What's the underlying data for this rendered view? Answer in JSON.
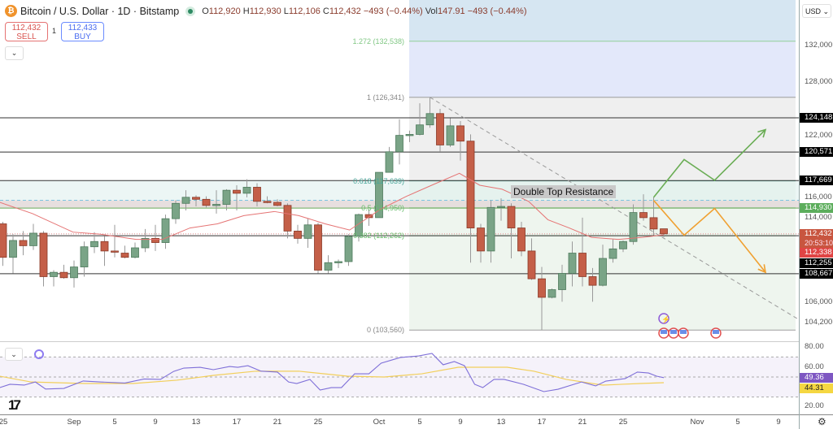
{
  "header": {
    "symbol_icon": "bitcoin-icon",
    "title": "Bitcoin / U.S. Dollar · 1D · Bitstamp",
    "status_icon": "market-open-dot",
    "ohlc": {
      "o_label": "O",
      "o": "112,920",
      "h_label": "H",
      "h": "112,930",
      "l_label": "L",
      "l": "112,106",
      "c_label": "C",
      "c": "112,432",
      "change": "−493 (−0.44%)",
      "vol_label": "Vol",
      "vol": "147.91",
      "vol_change": "−493 (−0.44%)"
    }
  },
  "trade": {
    "sell_price": "112,432",
    "sell_label": "SELL",
    "qty": "1",
    "buy_price": "112,433",
    "buy_label": "BUY"
  },
  "annotation": "Double Top Resistance",
  "axis": {
    "currency": "USD",
    "price_labels": [
      "132,000",
      "128,000",
      "122,000",
      "116,000",
      "114,000",
      "106,000",
      "104,200"
    ],
    "badges": {
      "level1": "124,148",
      "level2": "120,571",
      "level3": "117,669",
      "level4": "114,930",
      "last": "112,432",
      "countdown": "20:53:10",
      "ma": "112,338",
      "level5": "112,255",
      "level6": "108,667"
    },
    "rsi_labels": [
      "80.00",
      "60.00",
      "20.00"
    ],
    "rsi_value": "49.36",
    "rsi_ma_value": "44.31"
  },
  "dates": [
    "25",
    "Sep",
    "5",
    "9",
    "13",
    "17",
    "21",
    "25",
    "Oct",
    "5",
    "9",
    "13",
    "17",
    "21",
    "25",
    "Nov",
    "5",
    "9"
  ],
  "colors": {
    "up": "#7aa487",
    "down": "#c45f48",
    "ma": "#e57373",
    "rsi": "#7e6fd8",
    "rsi_ma": "#f2cf5b",
    "bull_path": "#6aad55",
    "bear_path": "#f0a030"
  },
  "chart_data": {
    "type": "candlestick",
    "scale": "log",
    "timeframe": "1D",
    "start_date": "Aug 25",
    "candles_ohlc": [
      [
        113400,
        113600,
        109400,
        110200
      ],
      [
        110200,
        112400,
        108700,
        111800
      ],
      [
        111800,
        112700,
        110400,
        111300
      ],
      [
        111300,
        113400,
        110900,
        112500
      ],
      [
        112500,
        112700,
        107500,
        108400
      ],
      [
        108400,
        109000,
        107500,
        108800
      ],
      [
        108800,
        109500,
        108200,
        108300
      ],
      [
        108300,
        109900,
        107400,
        109300
      ],
      [
        109300,
        111700,
        108400,
        111200
      ],
      [
        111200,
        112600,
        110600,
        111700
      ],
      [
        111700,
        112200,
        109400,
        110800
      ],
      [
        110800,
        113300,
        110200,
        110700
      ],
      [
        110600,
        111300,
        110100,
        110200
      ],
      [
        110200,
        111600,
        110100,
        111100
      ],
      [
        111100,
        112900,
        110700,
        112000
      ],
      [
        112000,
        113300,
        110800,
        111600
      ],
      [
        111600,
        114300,
        111000,
        113900
      ],
      [
        113900,
        115700,
        113400,
        115400
      ],
      [
        115400,
        116700,
        114700,
        116000
      ],
      [
        116000,
        116200,
        115100,
        115800
      ],
      [
        115800,
        116100,
        115000,
        115200
      ],
      [
        115200,
        116700,
        114400,
        115300
      ],
      [
        115300,
        116800,
        114700,
        116700
      ],
      [
        116700,
        117200,
        114700,
        116400
      ],
      [
        116400,
        117800,
        116000,
        117000
      ],
      [
        117000,
        117400,
        115100,
        115600
      ],
      [
        115600,
        116100,
        115400,
        115500
      ],
      [
        115500,
        115800,
        115100,
        115200
      ],
      [
        115200,
        115400,
        112000,
        112700
      ],
      [
        112700,
        113300,
        111500,
        112000
      ],
      [
        112000,
        113900,
        111100,
        113300
      ],
      [
        113300,
        113500,
        108700,
        109000
      ],
      [
        109000,
        110400,
        108700,
        109700
      ],
      [
        109700,
        110000,
        109200,
        109800
      ],
      [
        109800,
        112400,
        109400,
        112200
      ],
      [
        112200,
        114400,
        111700,
        114300
      ],
      [
        114300,
        114800,
        113200,
        114000
      ],
      [
        114000,
        118500,
        114000,
        118500
      ],
      [
        118500,
        121100,
        118500,
        120600
      ],
      [
        120600,
        124000,
        119300,
        122300
      ],
      [
        122300,
        122800,
        121600,
        122400
      ],
      [
        122400,
        125700,
        122300,
        123400
      ],
      [
        123400,
        126300,
        123100,
        124600
      ],
      [
        124600,
        125100,
        120600,
        121300
      ],
      [
        121300,
        124100,
        121100,
        123300
      ],
      [
        123300,
        123800,
        119700,
        121700
      ],
      [
        121700,
        122400,
        109700,
        113000
      ],
      [
        113000,
        113400,
        109700,
        110800
      ],
      [
        110800,
        115700,
        109700,
        115000
      ],
      [
        115000,
        115900,
        113700,
        115100
      ],
      [
        115100,
        115400,
        110100,
        113000
      ],
      [
        113000,
        113600,
        110300,
        110800
      ],
      [
        110800,
        112000,
        108100,
        108200
      ],
      [
        108200,
        109300,
        103560,
        106500
      ],
      [
        106500,
        107300,
        106400,
        107200
      ],
      [
        107200,
        109500,
        106100,
        108700
      ],
      [
        108700,
        111700,
        107500,
        110600
      ],
      [
        110600,
        114000,
        107500,
        108400
      ],
      [
        108400,
        109200,
        106100,
        107600
      ],
      [
        107600,
        111400,
        107500,
        110100
      ],
      [
        110100,
        111900,
        109700,
        111000
      ],
      [
        111000,
        111800,
        110700,
        111700
      ],
      [
        111700,
        115300,
        111400,
        114500
      ],
      [
        114500,
        116300,
        113700,
        114000
      ],
      [
        114000,
        116000,
        112300,
        112900
      ],
      [
        112920,
        112930,
        112106,
        112432
      ]
    ],
    "ma_points": [
      [
        0.7,
        115500
      ],
      [
        3.9,
        114400
      ],
      [
        7.9,
        112600
      ],
      [
        10.6,
        112400
      ],
      [
        14.1,
        111900
      ],
      [
        16.7,
        111900
      ],
      [
        19.4,
        113000
      ],
      [
        22.1,
        113400
      ],
      [
        24.7,
        114200
      ],
      [
        27.7,
        114600
      ],
      [
        30.1,
        114200
      ],
      [
        32.7,
        113400
      ],
      [
        35.1,
        112800
      ],
      [
        38.1,
        114800
      ],
      [
        40.7,
        116100
      ],
      [
        43.4,
        117300
      ],
      [
        45.9,
        118400
      ],
      [
        47.9,
        117200
      ],
      [
        50.1,
        116800
      ],
      [
        52.7,
        115600
      ],
      [
        54.6,
        113800
      ],
      [
        56.7,
        113000
      ],
      [
        58.9,
        112100
      ],
      [
        61.5,
        111900
      ],
      [
        63.9,
        112100
      ],
      [
        66,
        112338
      ]
    ],
    "levels": [
      124148,
      120571,
      117669,
      112255,
      108667
    ],
    "support_level": 114930,
    "fib": {
      "levels": [
        {
          "label": "1.272 (132,538)",
          "price": 132538,
          "color": "#81c784"
        },
        {
          "label": "1 (126,341)",
          "price": 126341,
          "color": "#888"
        },
        {
          "label": "0.618 (117,639)",
          "price": 117639,
          "color": "#4aa79b"
        },
        {
          "label": "0.5 (114,950)",
          "price": 114950,
          "color": "#66bb6a"
        },
        {
          "label": "0.382 (112,262)",
          "price": 112262,
          "color": "#66bb6a"
        },
        {
          "label": "0 (103,560)",
          "price": 103560,
          "color": "#888"
        }
      ]
    },
    "resistance_zone": [
      114930,
      117669
    ],
    "trendline": [
      [
        43,
        126341
      ],
      [
        81,
        103560
      ]
    ],
    "bull_scenario": [
      [
        65,
        116000
      ],
      [
        68,
        119800
      ],
      [
        71,
        117700
      ],
      [
        76,
        122900
      ]
    ],
    "bear_scenario": [
      [
        65,
        115700
      ],
      [
        68,
        112300
      ],
      [
        71,
        114900
      ],
      [
        76,
        108800
      ]
    ],
    "rsi": {
      "ylim": [
        0,
        100
      ],
      "bands": [
        70,
        50,
        30
      ],
      "points": [
        [
          0.7,
          39.4
        ],
        [
          1.7,
          42.7
        ],
        [
          3.1,
          41.9
        ],
        [
          4.2,
          45
        ],
        [
          5.2,
          38
        ],
        [
          7,
          38.6
        ],
        [
          8.9,
          46
        ],
        [
          10.7,
          45
        ],
        [
          13,
          44
        ],
        [
          14.9,
          48
        ],
        [
          16.5,
          47.6
        ],
        [
          17.8,
          55.6
        ],
        [
          18.8,
          58.9
        ],
        [
          20.4,
          59.7
        ],
        [
          21.7,
          57.3
        ],
        [
          23.3,
          60.5
        ],
        [
          24.1,
          59.7
        ],
        [
          25.1,
          61.3
        ],
        [
          26.4,
          55.8
        ],
        [
          28,
          54.9
        ],
        [
          29.1,
          45
        ],
        [
          29.9,
          43.5
        ],
        [
          31.2,
          47.6
        ],
        [
          32.2,
          37
        ],
        [
          33.3,
          39.4
        ],
        [
          34.3,
          39.4
        ],
        [
          35.6,
          53.2
        ],
        [
          37,
          53.2
        ],
        [
          38.2,
          63.8
        ],
        [
          40.1,
          69.5
        ],
        [
          41.9,
          71
        ],
        [
          43.2,
          73.5
        ],
        [
          44.3,
          62.2
        ],
        [
          45.4,
          65.4
        ],
        [
          46.4,
          61.3
        ],
        [
          47.4,
          42.7
        ],
        [
          48.2,
          39.4
        ],
        [
          49.3,
          47.6
        ],
        [
          50.3,
          47.6
        ],
        [
          52.2,
          42.7
        ],
        [
          54.2,
          35.4
        ],
        [
          55.6,
          37.8
        ],
        [
          57.9,
          45
        ],
        [
          59.3,
          41.1
        ],
        [
          60.3,
          45.9
        ],
        [
          62.2,
          48.4
        ],
        [
          63.4,
          54.9
        ],
        [
          64.5,
          54
        ],
        [
          65.3,
          50.8
        ],
        [
          66,
          49.36
        ]
      ],
      "ma_points": [
        [
          0.7,
          50.8
        ],
        [
          3.8,
          45
        ],
        [
          9.1,
          43.5
        ],
        [
          13.8,
          43.5
        ],
        [
          18.1,
          46.8
        ],
        [
          21.7,
          51.6
        ],
        [
          25.9,
          55.8
        ],
        [
          30.1,
          55.8
        ],
        [
          34.9,
          50.8
        ],
        [
          38.5,
          50
        ],
        [
          42.2,
          53.2
        ],
        [
          45.8,
          59.7
        ],
        [
          50.6,
          59.7
        ],
        [
          53.2,
          55.8
        ],
        [
          56.4,
          47.6
        ],
        [
          60,
          41.9
        ],
        [
          63.7,
          43.5
        ],
        [
          66,
          44.31
        ]
      ]
    }
  }
}
